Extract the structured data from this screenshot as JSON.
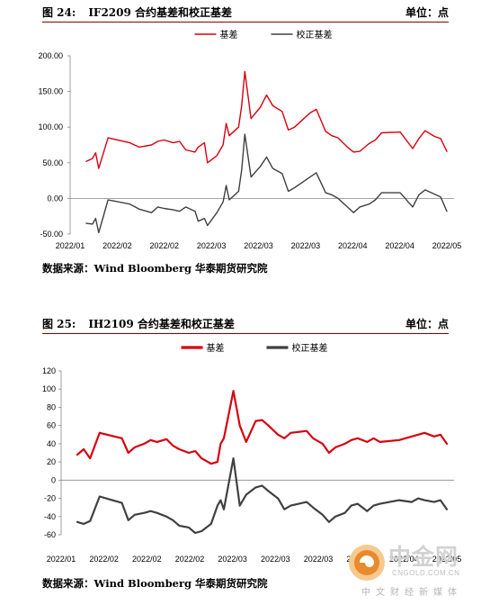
{
  "figures": [
    {
      "number": "图 24:",
      "title": "IF2209 合约基差和校正基差",
      "unit": "单位：点",
      "source": "数据来源：Wind  Bloomberg  华泰期货研究院"
    },
    {
      "number": "图 25:",
      "title": "IH2109 合约基差和校正基差",
      "unit": "单位：点",
      "source": "数据来源：Wind  Bloomberg  华泰期货研究院"
    }
  ],
  "watermark": {
    "name": "中金网",
    "url": "CNGOLD.COM.CN",
    "tagline": "中文财经新媒体"
  },
  "colors": {
    "basis": "#d7000f",
    "adjusted": "#404040"
  },
  "chart_data": [
    {
      "type": "line",
      "title": "",
      "legend_position": "top-center",
      "grid": false,
      "y_ticks": [
        "200.00",
        "150.00",
        "100.00",
        "50.00",
        "0.00",
        "-50.00"
      ],
      "ylim": [
        -50,
        200
      ],
      "x_tick_labels": [
        "2022/01",
        "2022/02",
        "2022/02",
        "2022/03",
        "2022/03",
        "2022/03",
        "2022/04",
        "2022/04",
        "2022/05"
      ],
      "x": [
        "2022-01-24",
        "2022-01-26",
        "2022-01-27",
        "2022-01-28",
        "2022-01-31",
        "2022-02-07",
        "2022-02-10",
        "2022-02-14",
        "2022-02-16",
        "2022-02-18",
        "2022-02-21",
        "2022-02-23",
        "2022-02-25",
        "2022-02-28",
        "2022-03-01",
        "2022-03-03",
        "2022-03-04",
        "2022-03-07",
        "2022-03-09",
        "2022-03-10",
        "2022-03-11",
        "2022-03-14",
        "2022-03-15",
        "2022-03-16",
        "2022-03-18",
        "2022-03-21",
        "2022-03-23",
        "2022-03-25",
        "2022-03-28",
        "2022-03-30",
        "2022-04-01",
        "2022-04-06",
        "2022-04-08",
        "2022-04-11",
        "2022-04-13",
        "2022-04-15",
        "2022-04-18",
        "2022-04-20",
        "2022-04-22",
        "2022-04-25",
        "2022-04-27",
        "2022-04-29",
        "2022-05-05",
        "2022-05-09",
        "2022-05-11",
        "2022-05-13",
        "2022-05-16",
        "2022-05-18",
        "2022-05-20"
      ],
      "series": [
        {
          "name": "基差",
          "values": [
            52,
            56,
            64,
            42,
            85,
            78,
            72,
            75,
            80,
            82,
            78,
            80,
            68,
            65,
            72,
            78,
            50,
            60,
            75,
            105,
            88,
            100,
            130,
            178,
            112,
            128,
            145,
            130,
            122,
            96,
            100,
            120,
            125,
            94,
            88,
            85,
            72,
            65,
            66,
            77,
            82,
            92,
            93,
            70,
            84,
            95,
            87,
            84,
            66
          ]
        },
        {
          "name": "校正基差",
          "values": [
            -35,
            -36,
            -28,
            -48,
            -2,
            -8,
            -15,
            -20,
            -12,
            -14,
            -16,
            -18,
            -12,
            -18,
            -32,
            -28,
            -38,
            -20,
            -5,
            18,
            -2,
            10,
            40,
            90,
            30,
            45,
            58,
            42,
            35,
            10,
            15,
            30,
            36,
            8,
            5,
            0,
            -12,
            -20,
            -12,
            -8,
            -2,
            8,
            8,
            -12,
            5,
            12,
            6,
            2,
            -18
          ]
        }
      ]
    },
    {
      "type": "line",
      "title": "",
      "legend_position": "top-center",
      "grid": false,
      "y_ticks": [
        "120",
        "100",
        "80",
        "60",
        "40",
        "20",
        "0",
        "-20",
        "-40",
        "-60"
      ],
      "ylim": [
        -60,
        120
      ],
      "x_tick_labels": [
        "2022/01",
        "2022/02",
        "2022/02",
        "2022/02",
        "2022/03",
        "2022/03",
        "2022/03",
        "2022/04",
        "2022/04",
        "2022/05"
      ],
      "x": [
        "2022-01-24",
        "2022-01-26",
        "2022-01-28",
        "2022-01-31",
        "2022-02-07",
        "2022-02-09",
        "2022-02-11",
        "2022-02-14",
        "2022-02-16",
        "2022-02-18",
        "2022-02-21",
        "2022-02-23",
        "2022-02-25",
        "2022-02-28",
        "2022-03-02",
        "2022-03-04",
        "2022-03-07",
        "2022-03-09",
        "2022-03-10",
        "2022-03-11",
        "2022-03-14",
        "2022-03-16",
        "2022-03-18",
        "2022-03-21",
        "2022-03-23",
        "2022-03-25",
        "2022-03-28",
        "2022-03-30",
        "2022-04-01",
        "2022-04-06",
        "2022-04-08",
        "2022-04-11",
        "2022-04-13",
        "2022-04-15",
        "2022-04-18",
        "2022-04-20",
        "2022-04-22",
        "2022-04-25",
        "2022-04-27",
        "2022-04-29",
        "2022-05-05",
        "2022-05-09",
        "2022-05-11",
        "2022-05-13",
        "2022-05-16",
        "2022-05-18",
        "2022-05-20"
      ],
      "series": [
        {
          "name": "基差",
          "values": [
            28,
            34,
            24,
            52,
            46,
            30,
            36,
            40,
            44,
            42,
            45,
            38,
            34,
            30,
            32,
            24,
            18,
            20,
            40,
            46,
            98,
            60,
            42,
            65,
            66,
            60,
            50,
            46,
            52,
            54,
            46,
            40,
            30,
            36,
            40,
            44,
            46,
            42,
            46,
            42,
            44,
            48,
            50,
            52,
            48,
            50,
            40
          ]
        },
        {
          "name": "校正基差",
          "values": [
            -46,
            -48,
            -45,
            -18,
            -25,
            -44,
            -38,
            -36,
            -34,
            -36,
            -40,
            -44,
            -50,
            -52,
            -58,
            -56,
            -48,
            -28,
            -22,
            -32,
            24,
            -28,
            -16,
            -8,
            -6,
            -12,
            -20,
            -32,
            -28,
            -24,
            -30,
            -38,
            -46,
            -40,
            -36,
            -28,
            -26,
            -34,
            -28,
            -26,
            -22,
            -24,
            -20,
            -22,
            -24,
            -22,
            -32
          ]
        }
      ]
    }
  ]
}
